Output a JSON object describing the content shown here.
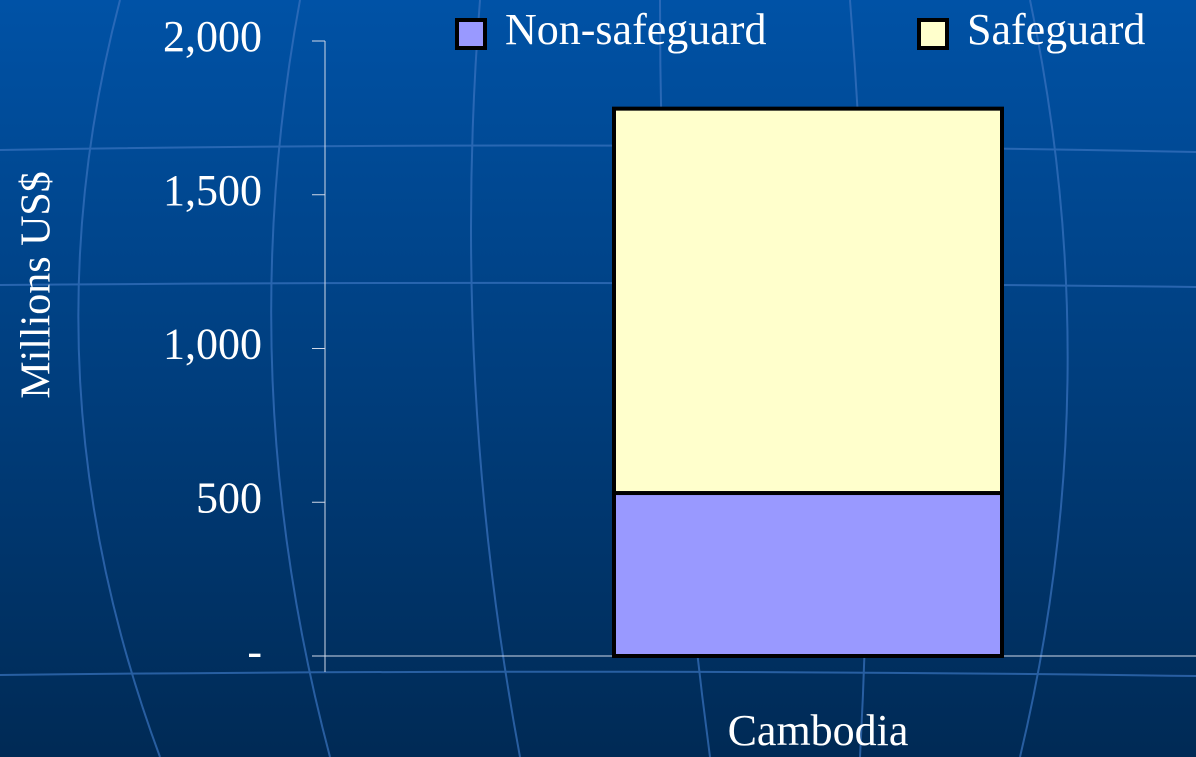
{
  "chart_data": {
    "type": "stacked_bar",
    "y_label": "Millions US$",
    "categories": [
      "Cambodia"
    ],
    "series": [
      {
        "name": "Non-safeguard",
        "color": "#9999ff",
        "values": [
          530
        ]
      },
      {
        "name": "Safeguard",
        "color": "#ffffcc",
        "values": [
          1250
        ]
      }
    ],
    "ylim": [
      0,
      2000
    ],
    "yticks": [
      {
        "value": 0,
        "label": "-"
      },
      500,
      {
        "value": 1000,
        "label": "1,000"
      },
      {
        "value": 1500,
        "label": "1,500"
      },
      {
        "value": 2000,
        "label": "2,000"
      }
    ],
    "legend": "top"
  }
}
